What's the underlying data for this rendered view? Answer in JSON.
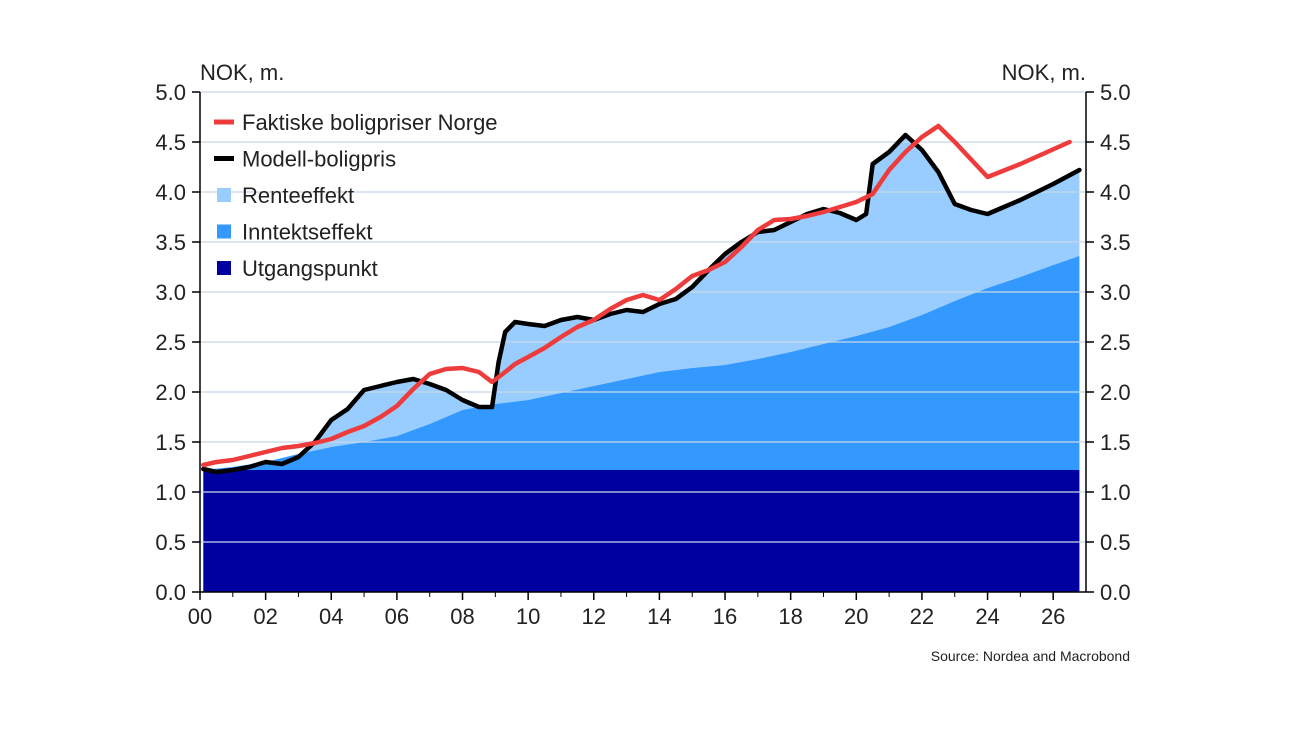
{
  "chart_data": {
    "type": "area",
    "ylabel_left": "NOK, m.",
    "ylabel_right": "NOK, m.",
    "source": "Source: Nordea and Macrobond",
    "ylim": [
      0,
      5
    ],
    "xlim": [
      2000,
      2027
    ],
    "yticks": [
      {
        "value": 0.0,
        "label": "0.0"
      },
      {
        "value": 0.5,
        "label": "0.5"
      },
      {
        "value": 1.0,
        "label": "1.0"
      },
      {
        "value": 1.5,
        "label": "1.5"
      },
      {
        "value": 2.0,
        "label": "2.0"
      },
      {
        "value": 2.5,
        "label": "2.5"
      },
      {
        "value": 3.0,
        "label": "3.0"
      },
      {
        "value": 3.5,
        "label": "3.5"
      },
      {
        "value": 4.0,
        "label": "4.0"
      },
      {
        "value": 4.5,
        "label": "4.5"
      },
      {
        "value": 5.0,
        "label": "5.0"
      }
    ],
    "xticks": [
      {
        "value": 2000,
        "label": "00"
      },
      {
        "value": 2002,
        "label": "02"
      },
      {
        "value": 2004,
        "label": "04"
      },
      {
        "value": 2006,
        "label": "06"
      },
      {
        "value": 2008,
        "label": "08"
      },
      {
        "value": 2010,
        "label": "10"
      },
      {
        "value": 2012,
        "label": "12"
      },
      {
        "value": 2014,
        "label": "14"
      },
      {
        "value": 2016,
        "label": "16"
      },
      {
        "value": 2018,
        "label": "18"
      },
      {
        "value": 2020,
        "label": "20"
      },
      {
        "value": 2022,
        "label": "22"
      },
      {
        "value": 2024,
        "label": "24"
      },
      {
        "value": 2026,
        "label": "26"
      }
    ],
    "grid": true,
    "legend_position": "top-left",
    "legend": [
      {
        "label": "Faktiske boligpriser Norge",
        "kind": "line",
        "color": "#ee3b3b"
      },
      {
        "label": "Modell-boligpris",
        "kind": "line",
        "color": "#000000"
      },
      {
        "label": "Renteeffekt",
        "kind": "area",
        "color": "#99ccff"
      },
      {
        "label": "Inntektseffekt",
        "kind": "area",
        "color": "#3399ff"
      },
      {
        "label": "Utgangspunkt",
        "kind": "area",
        "color": "#0000a0"
      }
    ],
    "series": [
      {
        "name": "Utgangspunkt",
        "kind": "area",
        "color": "#0000a0",
        "x": [
          2000.1,
          2026.8
        ],
        "y": [
          1.22,
          1.22
        ]
      },
      {
        "name": "Inntektseffekt",
        "kind": "area",
        "color": "#3399ff",
        "x": [
          2000.1,
          2001,
          2002,
          2003,
          2004,
          2005,
          2006,
          2007,
          2008,
          2009,
          2010,
          2011,
          2012,
          2013,
          2014,
          2015,
          2016,
          2017,
          2018,
          2019,
          2020,
          2021,
          2022,
          2023,
          2024,
          2025,
          2026,
          2026.8
        ],
        "y": [
          1.22,
          1.25,
          1.3,
          1.38,
          1.45,
          1.5,
          1.56,
          1.68,
          1.82,
          1.88,
          1.92,
          1.99,
          2.06,
          2.13,
          2.2,
          2.24,
          2.27,
          2.33,
          2.4,
          2.48,
          2.56,
          2.65,
          2.77,
          2.91,
          3.04,
          3.15,
          3.27,
          3.36
        ]
      },
      {
        "name": "Modell-boligpris",
        "kind": "line",
        "color": "#000000",
        "x": [
          2000.1,
          2000.5,
          2001,
          2001.5,
          2002,
          2002.5,
          2003,
          2003.5,
          2004,
          2004.5,
          2005,
          2005.5,
          2006,
          2006.5,
          2007,
          2007.5,
          2008,
          2008.5,
          2008.9,
          2009.1,
          2009.3,
          2009.6,
          2010,
          2010.5,
          2011,
          2011.5,
          2012,
          2012.5,
          2013,
          2013.5,
          2014,
          2014.5,
          2015,
          2015.5,
          2016,
          2016.5,
          2017,
          2017.5,
          2018,
          2018.5,
          2019,
          2019.5,
          2020,
          2020.3,
          2020.5,
          2021,
          2021.5,
          2022,
          2022.5,
          2023,
          2023.5,
          2024,
          2024.5,
          2025,
          2025.5,
          2026,
          2026.8
        ],
        "y": [
          1.23,
          1.2,
          1.22,
          1.25,
          1.3,
          1.28,
          1.35,
          1.5,
          1.72,
          1.83,
          2.02,
          2.06,
          2.1,
          2.13,
          2.08,
          2.02,
          1.92,
          1.85,
          1.85,
          2.3,
          2.6,
          2.7,
          2.68,
          2.66,
          2.72,
          2.75,
          2.72,
          2.78,
          2.82,
          2.8,
          2.88,
          2.93,
          3.05,
          3.22,
          3.38,
          3.5,
          3.6,
          3.62,
          3.7,
          3.78,
          3.83,
          3.79,
          3.72,
          3.78,
          4.28,
          4.4,
          4.57,
          4.42,
          4.2,
          3.88,
          3.82,
          3.78,
          3.85,
          3.92,
          4.0,
          4.08,
          4.22
        ]
      },
      {
        "name": "Faktiske boligpriser Norge",
        "kind": "line",
        "color": "#ee3b3b",
        "x": [
          2000.1,
          2000.5,
          2001,
          2001.5,
          2002,
          2002.5,
          2003,
          2003.5,
          2004,
          2004.5,
          2005,
          2005.5,
          2006,
          2006.5,
          2007,
          2007.5,
          2008,
          2008.5,
          2008.9,
          2009.3,
          2009.6,
          2010,
          2010.5,
          2011,
          2011.5,
          2012,
          2012.5,
          2013,
          2013.5,
          2014,
          2014.5,
          2015,
          2015.5,
          2016,
          2016.5,
          2017,
          2017.5,
          2018,
          2018.5,
          2019,
          2019.5,
          2020,
          2020.5,
          2021,
          2021.5,
          2022,
          2022.5,
          2023,
          2024,
          2025,
          2026.5
        ],
        "y": [
          1.27,
          1.3,
          1.32,
          1.36,
          1.4,
          1.44,
          1.46,
          1.49,
          1.53,
          1.6,
          1.66,
          1.75,
          1.86,
          2.03,
          2.18,
          2.23,
          2.24,
          2.2,
          2.1,
          2.2,
          2.28,
          2.35,
          2.44,
          2.55,
          2.65,
          2.72,
          2.83,
          2.92,
          2.97,
          2.92,
          3.03,
          3.16,
          3.22,
          3.3,
          3.45,
          3.62,
          3.72,
          3.73,
          3.76,
          3.8,
          3.85,
          3.9,
          3.98,
          4.22,
          4.4,
          4.55,
          4.66,
          4.5,
          4.15,
          4.28,
          4.5
        ]
      }
    ]
  }
}
